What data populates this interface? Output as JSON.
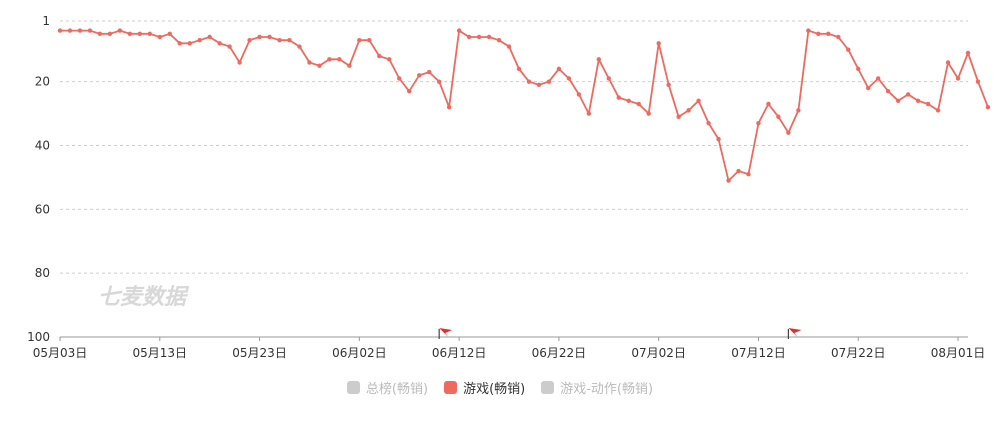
{
  "chart_data": {
    "type": "line",
    "title": "",
    "xlabel": "",
    "ylabel": "",
    "y_inverted": true,
    "ylim": [
      1,
      100
    ],
    "y_ticks": [
      1,
      20,
      40,
      60,
      80,
      100
    ],
    "x_ticks": [
      "05月03日",
      "05月13日",
      "05月23日",
      "06月02日",
      "06月12日",
      "06月22日",
      "07月02日",
      "07月12日",
      "07月22日",
      "08月01日"
    ],
    "x_start": "2023-05-03",
    "x_end": "2023-08-02",
    "grid": true,
    "legend_position": "bottom",
    "series": [
      {
        "name": "游戏(畅销)",
        "color": "#f0695f",
        "values": [
          4,
          4,
          4,
          4,
          5,
          5,
          4,
          5,
          5,
          5,
          6,
          5,
          8,
          8,
          7,
          6,
          8,
          9,
          14,
          7,
          6,
          6,
          7,
          7,
          9,
          14,
          15,
          13,
          13,
          15,
          7,
          7,
          12,
          13,
          19,
          23,
          18,
          17,
          20,
          28,
          4,
          6,
          6,
          6,
          7,
          9,
          16,
          20,
          21,
          20,
          16,
          19,
          24,
          30,
          13,
          19,
          25,
          26,
          27,
          30,
          8,
          21,
          31,
          29,
          26,
          33,
          38,
          51,
          48,
          49,
          33,
          27,
          31,
          36,
          29,
          4,
          5,
          5,
          6,
          10,
          16,
          22,
          19,
          23,
          26,
          24,
          26,
          27,
          29,
          14,
          19,
          11,
          20,
          28
        ]
      }
    ],
    "flags": [
      {
        "date_index": 38,
        "color": "#e62e2e"
      },
      {
        "date_index": 73,
        "color": "#e62e2e"
      }
    ],
    "watermark": "七麦数据"
  },
  "legend": [
    {
      "label": "总榜(畅销)",
      "color": "#cccccc",
      "text_color": "#bbbbbb",
      "active": false
    },
    {
      "label": "游戏(畅销)",
      "color": "#f0695f",
      "text_color": "#333333",
      "active": true
    },
    {
      "label": "游戏-动作(畅销)",
      "color": "#cccccc",
      "text_color": "#bbbbbb",
      "active": false
    }
  ]
}
